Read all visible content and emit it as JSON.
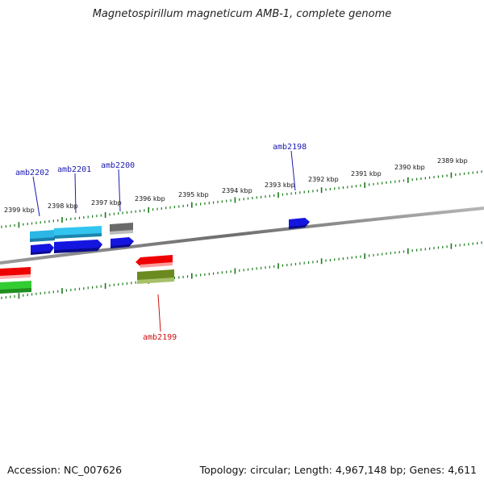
{
  "title": "Magnetospirillum magneticum AMB-1, complete genome",
  "footer": {
    "accession": "Accession: NC_007626",
    "stats": "Topology: circular; Length: 4,967,148 bp; Genes: 4,611"
  },
  "colors": {
    "backbone": "#8a8a8a",
    "ticks": "#1a7a1a",
    "label_plus": "#1a1ab0",
    "label_minus": "#cc1111"
  },
  "ruler_ticks": [
    "2399 kbp",
    "2398 kbp",
    "2397 kbp",
    "2396 kbp",
    "2395 kbp",
    "2394 kbp",
    "2393 kbp",
    "2392 kbp",
    "2391 kbp",
    "2390 kbp",
    "2389 kbp"
  ],
  "gene_labels": [
    {
      "text": "amb2202",
      "strand": "plus"
    },
    {
      "text": "amb2201",
      "strand": "plus"
    },
    {
      "text": "amb2200",
      "strand": "plus"
    },
    {
      "text": "amb2198",
      "strand": "plus"
    },
    {
      "text": "amb2199",
      "strand": "minus"
    }
  ]
}
